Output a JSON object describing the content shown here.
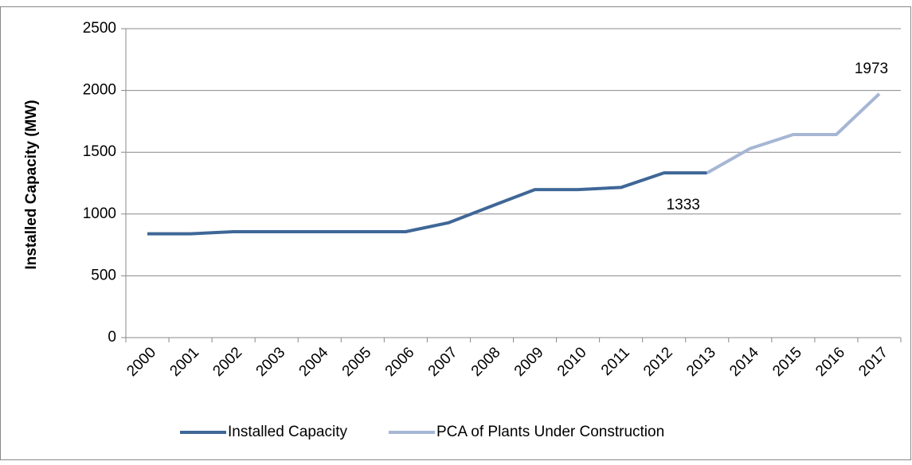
{
  "chart_data": {
    "type": "line",
    "y_label": "Installed Capacity (MW)",
    "categories": [
      "2000",
      "2001",
      "2002",
      "2003",
      "2004",
      "2005",
      "2006",
      "2007",
      "2008",
      "2009",
      "2010",
      "2011",
      "2012",
      "2013",
      "2014",
      "2015",
      "2016",
      "2017"
    ],
    "series": [
      {
        "name": "Installed Capacity",
        "color": "#3f6797",
        "values": [
          840,
          840,
          857,
          857,
          857,
          857,
          857,
          930,
          1065,
          1198,
          1198,
          1215,
          1333,
          1333,
          null,
          null,
          null,
          null
        ],
        "value_labels": [
          null,
          null,
          null,
          null,
          null,
          null,
          null,
          null,
          null,
          null,
          null,
          null,
          null,
          "1333",
          null,
          null,
          null,
          null
        ]
      },
      {
        "name": "PCA of Plants Under Construction",
        "color": "#a6b6d4",
        "values": [
          null,
          null,
          null,
          null,
          null,
          null,
          null,
          null,
          null,
          null,
          null,
          null,
          null,
          1333,
          1530,
          1643,
          1643,
          1973
        ],
        "value_labels": [
          null,
          null,
          null,
          null,
          null,
          null,
          null,
          null,
          null,
          null,
          null,
          null,
          null,
          null,
          null,
          null,
          null,
          "1973"
        ]
      }
    ],
    "ylim": [
      0,
      2500
    ],
    "yticks": [
      0,
      500,
      1000,
      1500,
      2000,
      2500
    ],
    "grid": true,
    "legend": "bottom"
  }
}
